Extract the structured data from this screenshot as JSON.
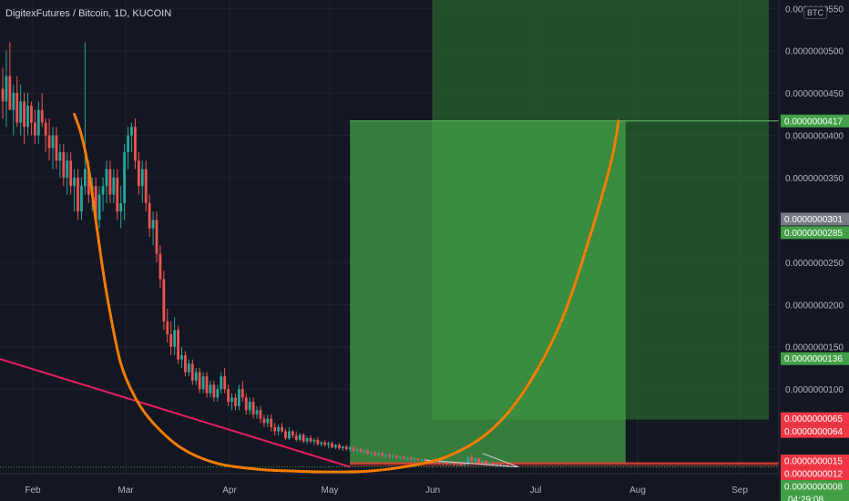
{
  "header": {
    "title": "DigitexFutures / Bitcoin, 1D, KUCOIN",
    "currency_badge": "BTC"
  },
  "colors": {
    "background": "#131722",
    "up_candle": "#26a69a",
    "down_candle": "#ef5350",
    "curve": "#f57c00",
    "trendline": "#e91e63",
    "target_zone": "#43a047",
    "stop_line": "#f44336"
  },
  "chart_data": {
    "type": "candlestick",
    "x_ticks": [
      "Feb",
      "Mar",
      "Apr",
      "May",
      "Jun",
      "Jul",
      "Aug",
      "Sep"
    ],
    "y_ticks": [
      "0.0000000550",
      "0.0000000500",
      "0.0000000450",
      "0.0000000400",
      "0.0000000350",
      "0.0000000250",
      "0.0000000200",
      "0.0000000150",
      "0.0000000100"
    ],
    "ylim": [
      0.0,
      5.6e-08
    ],
    "price_labels": [
      {
        "text": "0.0000000417",
        "value": 4.17e-08,
        "color": "#43a047"
      },
      {
        "text": "0.0000000301",
        "value": 3.01e-08,
        "color": "#787b86"
      },
      {
        "text": "0.0000000285",
        "value": 2.85e-08,
        "color": "#43a047"
      },
      {
        "text": "0.0000000136",
        "value": 1.36e-08,
        "color": "#43a047"
      },
      {
        "text": "0.0000000065",
        "value": 6.5e-09,
        "color": "#f23645"
      },
      {
        "text": "0.0000000064",
        "value": 6.4e-09,
        "color": "#f23645"
      },
      {
        "text": "0.0000000015",
        "value": 1.5e-09,
        "color": "#f23645"
      },
      {
        "text": "0.0000000012",
        "value": 1.2e-09,
        "color": "#f23645"
      },
      {
        "text": "0.0000000008",
        "value": 8e-10,
        "color": "#43a047"
      }
    ],
    "countdown": "04:29:08",
    "series": [
      {
        "values": [
          [
            4.55e-08,
            4.8e-08,
            4.2e-08,
            4.4e-08
          ],
          [
            4.4e-08,
            5e-08,
            4.1e-08,
            4.7e-08
          ],
          [
            4.7e-08,
            5.1e-08,
            4.3e-08,
            4.3e-08
          ],
          [
            4.3e-08,
            4.6e-08,
            4e-08,
            4.5e-08
          ],
          [
            4.5e-08,
            4.7e-08,
            4.1e-08,
            4.15e-08
          ],
          [
            4.15e-08,
            4.6e-08,
            4e-08,
            4.4e-08
          ],
          [
            4.4e-08,
            4.5e-08,
            3.9e-08,
            4.1e-08
          ],
          [
            4.1e-08,
            4.5e-08,
            4e-08,
            4.35e-08
          ],
          [
            4.35e-08,
            4.4e-08,
            4e-08,
            4.15e-08
          ],
          [
            4.15e-08,
            4.3e-08,
            3.9e-08,
            4e-08
          ],
          [
            4e-08,
            4.4e-08,
            3.9e-08,
            4.3e-08
          ],
          [
            4.3e-08,
            4.5e-08,
            4.1e-08,
            4.15e-08
          ],
          [
            4.15e-08,
            4.2e-08,
            3.8e-08,
            4e-08
          ],
          [
            4e-08,
            4.2e-08,
            3.7e-08,
            3.85e-08
          ],
          [
            3.85e-08,
            4.1e-08,
            3.6e-08,
            4e-08
          ],
          [
            4e-08,
            4.1e-08,
            3.6e-08,
            3.7e-08
          ],
          [
            3.7e-08,
            3.9e-08,
            3.5e-08,
            3.8e-08
          ],
          [
            3.8e-08,
            3.9e-08,
            3.4e-08,
            3.5e-08
          ],
          [
            3.5e-08,
            3.8e-08,
            3.3e-08,
            3.7e-08
          ],
          [
            3.7e-08,
            3.8e-08,
            3.3e-08,
            3.4e-08
          ],
          [
            3.4e-08,
            3.6e-08,
            3.1e-08,
            3.5e-08
          ],
          [
            3.5e-08,
            3.6e-08,
            3e-08,
            3.1e-08
          ],
          [
            3.1e-08,
            3.5e-08,
            3e-08,
            3.4e-08
          ],
          [
            3.4e-08,
            5.1e-08,
            3.3e-08,
            3.6e-08
          ],
          [
            3.6e-08,
            3.7e-08,
            3.2e-08,
            3.3e-08
          ],
          [
            3.3e-08,
            3.5e-08,
            3.1e-08,
            3.4e-08
          ],
          [
            3.4e-08,
            3.5e-08,
            2.9e-08,
            3e-08
          ],
          [
            3e-08,
            3.4e-08,
            2.9e-08,
            3.3e-08
          ],
          [
            3.3e-08,
            3.5e-08,
            3.1e-08,
            3.4e-08
          ],
          [
            3.4e-08,
            3.7e-08,
            3.2e-08,
            3.6e-08
          ],
          [
            3.6e-08,
            3.7e-08,
            3.2e-08,
            3.3e-08
          ],
          [
            3.3e-08,
            3.6e-08,
            3.2e-08,
            3.5e-08
          ],
          [
            3.5e-08,
            3.6e-08,
            3e-08,
            3.1e-08
          ],
          [
            3.1e-08,
            3.4e-08,
            2.9e-08,
            3.2e-08
          ],
          [
            3.2e-08,
            3.9e-08,
            3e-08,
            3.8e-08
          ],
          [
            3.8e-08,
            4.1e-08,
            3.6e-08,
            4e-08
          ],
          [
            4e-08,
            4.15e-08,
            3.8e-08,
            4.1e-08
          ],
          [
            4.1e-08,
            4.2e-08,
            3.6e-08,
            3.7e-08
          ],
          [
            3.7e-08,
            3.8e-08,
            3.3e-08,
            3.4e-08
          ],
          [
            3.4e-08,
            3.7e-08,
            3.2e-08,
            3.6e-08
          ],
          [
            3.6e-08,
            3.7e-08,
            3.1e-08,
            3.2e-08
          ],
          [
            3.2e-08,
            3.3e-08,
            2.8e-08,
            2.9e-08
          ],
          [
            2.9e-08,
            3.1e-08,
            2.7e-08,
            3e-08
          ],
          [
            3e-08,
            3.1e-08,
            2.5e-08,
            2.6e-08
          ],
          [
            2.6e-08,
            2.7e-08,
            2.2e-08,
            2.3e-08
          ],
          [
            2.3e-08,
            2.4e-08,
            1.7e-08,
            1.8e-08
          ],
          [
            1.8e-08,
            1.95e-08,
            1.55e-08,
            1.65e-08
          ],
          [
            1.65e-08,
            1.8e-08,
            1.4e-08,
            1.5e-08
          ],
          [
            1.5e-08,
            1.85e-08,
            1.4e-08,
            1.7e-08
          ],
          [
            1.7e-08,
            1.75e-08,
            1.3e-08,
            1.35e-08
          ],
          [
            1.35e-08,
            1.5e-08,
            1.25e-08,
            1.4e-08
          ],
          [
            1.4e-08,
            1.45e-08,
            1.15e-08,
            1.2e-08
          ],
          [
            1.2e-08,
            1.35e-08,
            1.15e-08,
            1.3e-08
          ],
          [
            1.3e-08,
            1.35e-08,
            1.05e-08,
            1.1e-08
          ],
          [
            1.1e-08,
            1.25e-08,
            1.05e-08,
            1.2e-08
          ],
          [
            1.2e-08,
            1.25e-08,
            9.5e-09,
            1e-08
          ],
          [
            1e-08,
            1.2e-08,
            9.5e-09,
            1.15e-08
          ],
          [
            1.15e-08,
            1.2e-08,
            9e-09,
            9.5e-09
          ],
          [
            9.5e-09,
            1.1e-08,
            9e-09,
            1.05e-08
          ],
          [
            1.05e-08,
            1.1e-08,
            8.5e-09,
            9e-09
          ],
          [
            9e-09,
            1.05e-08,
            8.5e-09,
            1e-08
          ],
          [
            1e-08,
            1.2e-08,
            9.5e-09,
            1.15e-08
          ],
          [
            1.15e-08,
            1.25e-08,
            9.5e-09,
            1e-08
          ],
          [
            1e-08,
            1.05e-08,
            8e-09,
            8.5e-09
          ],
          [
            8.5e-09,
            9.5e-09,
            7.5e-09,
            9e-09
          ],
          [
            9e-09,
            9.5e-09,
            7.5e-09,
            8e-09
          ],
          [
            8e-09,
            1.05e-08,
            7.5e-09,
            1e-08
          ],
          [
            1e-08,
            1.1e-08,
            8.5e-09,
            9e-09
          ],
          [
            9e-09,
            9.5e-09,
            7e-09,
            7.5e-09
          ],
          [
            7.5e-09,
            9e-09,
            7e-09,
            8.5e-09
          ],
          [
            8.5e-09,
            9e-09,
            6.5e-09,
            7e-09
          ],
          [
            7e-09,
            8e-09,
            6.5e-09,
            7.5e-09
          ],
          [
            7.5e-09,
            8e-09,
            6e-09,
            6.5e-09
          ],
          [
            6.5e-09,
            7e-09,
            5.5e-09,
            6e-09
          ],
          [
            6e-09,
            7e-09,
            5.5e-09,
            6.5e-09
          ],
          [
            6.5e-09,
            7e-09,
            5e-09,
            5.5e-09
          ],
          [
            5.5e-09,
            6e-09,
            4.5e-09,
            5e-09
          ],
          [
            5e-09,
            5.8e-09,
            4.5e-09,
            5.5e-09
          ],
          [
            5.5e-09,
            6e-09,
            4.8e-09,
            5e-09
          ],
          [
            5e-09,
            5.3e-09,
            4e-09,
            4.2e-09
          ],
          [
            4.2e-09,
            5.5e-09,
            4e-09,
            5e-09
          ],
          [
            5e-09,
            5.2e-09,
            4.2e-09,
            4.5e-09
          ],
          [
            4.5e-09,
            5e-09,
            3.8e-09,
            4e-09
          ],
          [
            4e-09,
            4.8e-09,
            3.8e-09,
            4.6e-09
          ],
          [
            4.6e-09,
            4.8e-09,
            3.6e-09,
            3.8e-09
          ],
          [
            3.8e-09,
            4.4e-09,
            3.5e-09,
            4.2e-09
          ],
          [
            4.2e-09,
            4.5e-09,
            3.6e-09,
            3.8e-09
          ],
          [
            3.8e-09,
            4.2e-09,
            3.4e-09,
            4e-09
          ],
          [
            4e-09,
            4.3e-09,
            3.3e-09,
            3.5e-09
          ],
          [
            3.5e-09,
            3.9e-09,
            3.2e-09,
            3.7e-09
          ],
          [
            3.7e-09,
            4e-09,
            3.2e-09,
            3.4e-09
          ],
          [
            3.4e-09,
            3.8e-09,
            3e-09,
            3.6e-09
          ],
          [
            3.6e-09,
            3.8e-09,
            3e-09,
            3.1e-09
          ],
          [
            3.1e-09,
            3.5e-09,
            2.9e-09,
            3.4e-09
          ],
          [
            3.4e-09,
            3.6e-09,
            2.8e-09,
            3e-09
          ],
          [
            3e-09,
            3.3e-09,
            2.7e-09,
            3.2e-09
          ],
          [
            3.2e-09,
            3.4e-09,
            2.7e-09,
            2.9e-09
          ],
          [
            2.9e-09,
            3.3e-09,
            2.6e-09,
            3.1e-09
          ],
          [
            3.1e-09,
            3.3e-09,
            2.5e-09,
            2.7e-09
          ],
          [
            2.7e-09,
            3e-09,
            2.4e-09,
            2.9e-09
          ],
          [
            2.9e-09,
            3.1e-09,
            2.4e-09,
            2.6e-09
          ],
          [
            2.6e-09,
            2.9e-09,
            2.3e-09,
            2.7e-09
          ],
          [
            2.7e-09,
            2.9e-09,
            2.2e-09,
            2.4e-09
          ],
          [
            2.4e-09,
            2.7e-09,
            2.1e-09,
            2.5e-09
          ],
          [
            2.5e-09,
            2.7e-09,
            2e-09,
            2.2e-09
          ],
          [
            2.2e-09,
            2.6e-09,
            2e-09,
            2.4e-09
          ],
          [
            2.4e-09,
            2.6e-09,
            1.9e-09,
            2.1e-09
          ],
          [
            2.1e-09,
            2.4e-09,
            1.8e-09,
            2.2e-09
          ],
          [
            2.2e-09,
            2.4e-09,
            1.8e-09,
            2e-09
          ],
          [
            2e-09,
            2.3e-09,
            1.7e-09,
            2.1e-09
          ],
          [
            2.1e-09,
            2.3e-09,
            1.7e-09,
            1.9e-09
          ],
          [
            1.9e-09,
            2.1e-09,
            1.6e-09,
            2e-09
          ],
          [
            2e-09,
            2.2e-09,
            1.6e-09,
            1.8e-09
          ],
          [
            1.8e-09,
            2e-09,
            1.5e-09,
            1.9e-09
          ],
          [
            1.9e-09,
            2e-09,
            1.5e-09,
            1.7e-09
          ],
          [
            1.7e-09,
            1.9e-09,
            1.4e-09,
            1.8e-09
          ],
          [
            1.8e-09,
            1.9e-09,
            1.4e-09,
            1.6e-09
          ],
          [
            1.6e-09,
            1.8e-09,
            1.3e-09,
            1.7e-09
          ],
          [
            1.7e-09,
            1.8e-09,
            1.3e-09,
            1.5e-09
          ],
          [
            1.5e-09,
            1.7e-09,
            1.2e-09,
            1.6e-09
          ],
          [
            1.6e-09,
            1.7e-09,
            1.2e-09,
            1.4e-09
          ],
          [
            1.4e-09,
            1.6e-09,
            1.1e-09,
            1.5e-09
          ],
          [
            1.5e-09,
            1.6e-09,
            1.1e-09,
            1.3e-09
          ],
          [
            1.3e-09,
            1.5e-09,
            1e-09,
            1.4e-09
          ],
          [
            1.4e-09,
            1.5e-09,
            1e-09,
            1.2e-09
          ],
          [
            1.2e-09,
            1.4e-09,
            1e-09,
            1.3e-09
          ],
          [
            1.3e-09,
            1.4e-09,
            9e-10,
            1.1e-09
          ],
          [
            1.1e-09,
            1.3e-09,
            9e-10,
            1.2e-09
          ],
          [
            1.2e-09,
            1.3e-09,
            9e-10,
            1e-09
          ],
          [
            1e-09,
            1.2e-09,
            9e-10,
            1.1e-09
          ],
          [
            1.1e-09,
            2.2e-09,
            1e-09,
            2e-09
          ],
          [
            2e-09,
            2.4e-09,
            1.4e-09,
            1.5e-09
          ],
          [
            1.5e-09,
            1.9e-09,
            1.2e-09,
            1.8e-09
          ],
          [
            1.8e-09,
            1.9e-09,
            1.1e-09,
            1.3e-09
          ],
          [
            1.3e-09,
            1.6e-09,
            1.1e-09,
            1.5e-09
          ],
          [
            1.5e-09,
            1.6e-09,
            1e-09,
            1.1e-09
          ],
          [
            1.1e-09,
            1.4e-09,
            1e-09,
            1.3e-09
          ],
          [
            1.3e-09,
            1.4e-09,
            9e-10,
            1e-09
          ],
          [
            1e-09,
            1.2e-09,
            8e-10,
            1.1e-09
          ],
          [
            1.1e-09,
            1.2e-09,
            8e-10,
            9e-10
          ],
          [
            9e-10,
            1.1e-09,
            8e-10,
            1e-09
          ],
          [
            1e-09,
            1.2e-09,
            8e-10,
            8e-10
          ]
        ]
      }
    ],
    "annotations": [
      {
        "type": "curve",
        "color": "#f57c00",
        "points": [
          [
            20,
            4.25e-08
          ],
          [
            22,
            4e-08
          ],
          [
            24,
            3.6e-08
          ],
          [
            26,
            3e-08
          ],
          [
            28,
            2.4e-08
          ],
          [
            30,
            1.9e-08
          ],
          [
            33,
            1.3e-08
          ],
          [
            37,
            9e-09
          ],
          [
            42,
            6e-09
          ],
          [
            50,
            3e-09
          ],
          [
            60,
            1.2e-09
          ],
          [
            72,
            5e-10
          ],
          [
            82,
            3e-10
          ],
          [
            92,
            2e-10
          ],
          [
            102,
            3e-10
          ],
          [
            112,
            8e-10
          ],
          [
            124,
            2e-09
          ],
          [
            136,
            5e-09
          ],
          [
            146,
            1e-08
          ],
          [
            156,
            1.8e-08
          ],
          [
            164,
            2.8e-08
          ],
          [
            170,
            3.7e-08
          ],
          [
            172,
            4.17e-08
          ]
        ]
      },
      {
        "type": "trendline",
        "color": "#e91e63",
        "points": [
          [
            -8,
            1.45e-08
          ],
          [
            97,
            8e-10
          ]
        ]
      },
      {
        "type": "target-zone",
        "color": "#43a047",
        "x0": 97,
        "x1": 174,
        "y0": 1.2e-09,
        "y1": 4.17e-08
      },
      {
        "type": "target-zone-upper",
        "color": "#2e7d32",
        "x0": 120,
        "x1": 214,
        "y0": 6.4e-09,
        "y1": 5.6e-08
      },
      {
        "type": "stop-line",
        "color": "#f44336",
        "x0": 97,
        "x1": 214,
        "y": 1.2e-09
      }
    ]
  }
}
